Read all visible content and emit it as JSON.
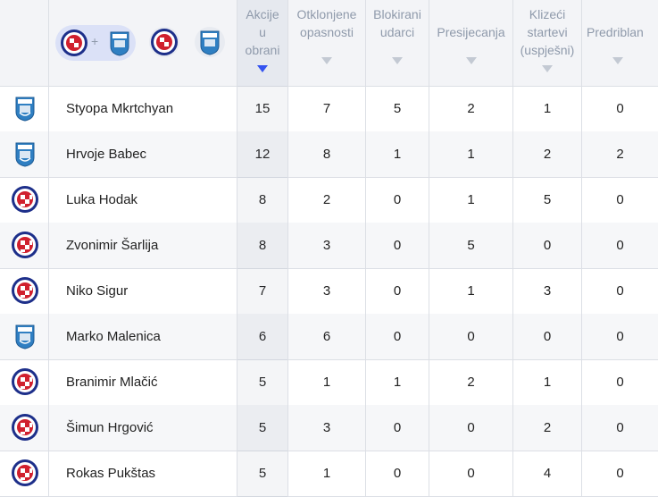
{
  "header": {
    "filter_plus": "+",
    "columns": [
      {
        "label_lines": [
          "Akcije",
          "u",
          "obrani"
        ],
        "sorted": true
      },
      {
        "label_lines": [
          "Otklonjene",
          "opasnosti"
        ],
        "sorted": false
      },
      {
        "label_lines": [
          "Blokirani",
          "udarci"
        ],
        "sorted": false
      },
      {
        "label_lines": [
          "Presijecanja"
        ],
        "sorted": false
      },
      {
        "label_lines": [
          "Klizeći",
          "startevi",
          "(uspješni)"
        ],
        "sorted": false
      },
      {
        "label_lines": [
          "Predriblan"
        ],
        "sorted": false
      }
    ]
  },
  "colors": {
    "accent": "#3453f0",
    "hajduk_red": "#d0202e",
    "hajduk_blue": "#1d2f8a",
    "osijek_blue": "#2f7fc2"
  },
  "rows": [
    {
      "team_icon": "osijek-crest-icon",
      "name": "Styopa Mkrtchyan",
      "stats": [
        "15",
        "7",
        "5",
        "2",
        "1",
        "0"
      ]
    },
    {
      "team_icon": "osijek-crest-icon",
      "name": "Hrvoje Babec",
      "stats": [
        "12",
        "8",
        "1",
        "1",
        "2",
        "2"
      ]
    },
    {
      "team_icon": "hajduk-crest-icon",
      "name": "Luka Hodak",
      "stats": [
        "8",
        "2",
        "0",
        "1",
        "5",
        "0"
      ]
    },
    {
      "team_icon": "hajduk-crest-icon",
      "name": "Zvonimir Šarlija",
      "stats": [
        "8",
        "3",
        "0",
        "5",
        "0",
        "0"
      ]
    },
    {
      "team_icon": "hajduk-crest-icon",
      "name": "Niko Sigur",
      "stats": [
        "7",
        "3",
        "0",
        "1",
        "3",
        "0"
      ]
    },
    {
      "team_icon": "osijek-crest-icon",
      "name": "Marko Malenica",
      "stats": [
        "6",
        "6",
        "0",
        "0",
        "0",
        "0"
      ]
    },
    {
      "team_icon": "hajduk-crest-icon",
      "name": "Branimir Mlačić",
      "stats": [
        "5",
        "1",
        "1",
        "2",
        "1",
        "0"
      ]
    },
    {
      "team_icon": "hajduk-crest-icon",
      "name": "Šimun Hrgović",
      "stats": [
        "5",
        "3",
        "0",
        "0",
        "2",
        "0"
      ]
    },
    {
      "team_icon": "hajduk-crest-icon",
      "name": "Rokas Pukštas",
      "stats": [
        "5",
        "1",
        "0",
        "0",
        "4",
        "0"
      ]
    }
  ]
}
